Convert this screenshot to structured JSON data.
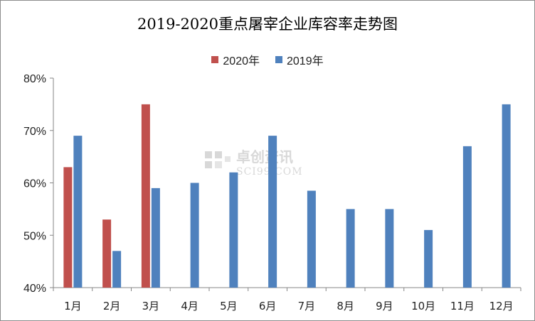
{
  "chart_data": {
    "type": "bar",
    "title": "2019-2020重点屠宰企业库容率走势图",
    "categories": [
      "1月",
      "2月",
      "3月",
      "4月",
      "5月",
      "6月",
      "7月",
      "8月",
      "9月",
      "10月",
      "11月",
      "12月"
    ],
    "series": [
      {
        "name": "2020年",
        "color": "#c0504d",
        "values": [
          63,
          53,
          75,
          null,
          null,
          null,
          null,
          null,
          null,
          null,
          null,
          null
        ]
      },
      {
        "name": "2019年",
        "color": "#4f81bd",
        "values": [
          69,
          47,
          59,
          60,
          62,
          69,
          58.5,
          55,
          55,
          51,
          67,
          75
        ]
      }
    ],
    "ylim": [
      40,
      80
    ],
    "yticks": [
      "40%",
      "50%",
      "60%",
      "70%",
      "80%"
    ],
    "ytick_values": [
      40,
      50,
      60,
      70,
      80
    ],
    "xlabel": "",
    "ylabel": "",
    "grid": false,
    "legend_position": "top"
  },
  "watermark": {
    "cn": "卓创资讯",
    "en": "SCI99.COM"
  }
}
